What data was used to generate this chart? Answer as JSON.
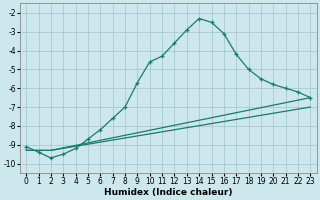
{
  "xlabel": "Humidex (Indice chaleur)",
  "ylabel": "",
  "bg_color": "#cde8ec",
  "grid_color": "#aac8d0",
  "line_color": "#1a7a6e",
  "xlim": [
    -0.5,
    23.5
  ],
  "ylim": [
    -10.5,
    -1.5
  ],
  "yticks": [
    -10,
    -9,
    -8,
    -7,
    -6,
    -5,
    -4,
    -3,
    -2
  ],
  "xticks": [
    0,
    1,
    2,
    3,
    4,
    5,
    6,
    7,
    8,
    9,
    10,
    11,
    12,
    13,
    14,
    15,
    16,
    17,
    18,
    19,
    20,
    21,
    22,
    23
  ],
  "series": [
    {
      "x": [
        0,
        1,
        2,
        3,
        4,
        5,
        6,
        7,
        8,
        9,
        10,
        11,
        12,
        13,
        14,
        15,
        16,
        17,
        18,
        19,
        20,
        21,
        22,
        23
      ],
      "y": [
        -9.1,
        -9.4,
        -9.7,
        -9.5,
        -9.2,
        -8.7,
        -8.2,
        -7.6,
        -7.0,
        -5.7,
        -4.6,
        -4.3,
        -3.6,
        -2.9,
        -2.3,
        -2.5,
        -3.1,
        -4.2,
        -5.0,
        -5.5,
        -5.8,
        -6.0,
        -6.2,
        -6.5
      ],
      "marker": "+"
    },
    {
      "x": [
        0,
        2,
        23
      ],
      "y": [
        -9.3,
        -9.3,
        -6.5
      ],
      "marker": null
    },
    {
      "x": [
        0,
        2,
        23
      ],
      "y": [
        -9.3,
        -9.3,
        -7.0
      ],
      "marker": null
    }
  ]
}
